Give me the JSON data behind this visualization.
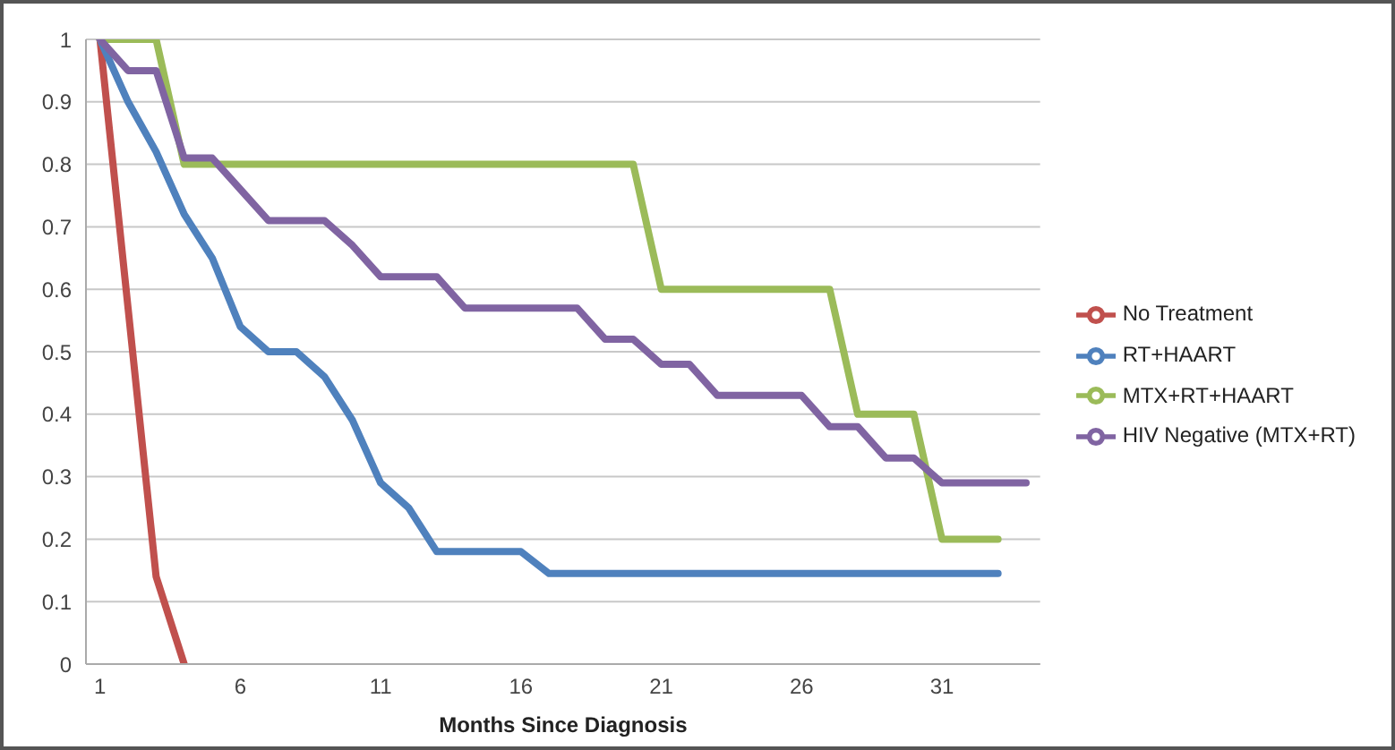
{
  "chart_data": {
    "type": "line",
    "xlabel": "Months Since Diagnosis",
    "x": [
      1,
      2,
      3,
      4,
      5,
      6,
      7,
      8,
      9,
      10,
      11,
      12,
      13,
      14,
      15,
      16,
      17,
      18,
      19,
      20,
      21,
      22,
      23,
      24,
      25,
      26,
      27,
      28,
      29,
      30,
      31,
      32,
      33,
      34
    ],
    "series": [
      {
        "name": "No Treatment",
        "color": "#c0504d",
        "values": [
          1,
          0.57,
          0.14,
          0,
          null,
          null,
          null,
          null,
          null,
          null,
          null,
          null,
          null,
          null,
          null,
          null,
          null,
          null,
          null,
          null,
          null,
          null,
          null,
          null,
          null,
          null,
          null,
          null,
          null,
          null,
          null,
          null,
          null,
          null
        ]
      },
      {
        "name": "RT+HAART",
        "color": "#4f81bd",
        "values": [
          1,
          0.9,
          0.82,
          0.72,
          0.65,
          0.54,
          0.5,
          0.5,
          0.46,
          0.39,
          0.29,
          0.25,
          0.18,
          0.18,
          0.18,
          0.18,
          0.145,
          0.145,
          0.145,
          0.145,
          0.145,
          0.145,
          0.145,
          0.145,
          0.145,
          0.145,
          0.145,
          0.145,
          0.145,
          0.145,
          0.145,
          0.145,
          0.145,
          null
        ]
      },
      {
        "name": "MTX+RT+HAART",
        "color": "#9bbb59",
        "values": [
          1,
          1,
          1,
          0.8,
          0.8,
          0.8,
          0.8,
          0.8,
          0.8,
          0.8,
          0.8,
          0.8,
          0.8,
          0.8,
          0.8,
          0.8,
          0.8,
          0.8,
          0.8,
          0.8,
          0.6,
          0.6,
          0.6,
          0.6,
          0.6,
          0.6,
          0.6,
          0.4,
          0.4,
          0.4,
          0.2,
          0.2,
          0.2,
          null
        ]
      },
      {
        "name": "HIV Negative (MTX+RT)",
        "color": "#8064a2",
        "values": [
          1,
          0.95,
          0.95,
          0.81,
          0.81,
          0.76,
          0.71,
          0.71,
          0.71,
          0.67,
          0.62,
          0.62,
          0.62,
          0.57,
          0.57,
          0.57,
          0.57,
          0.57,
          0.52,
          0.52,
          0.48,
          0.48,
          0.43,
          0.43,
          0.43,
          0.43,
          0.38,
          0.38,
          0.33,
          0.33,
          0.29,
          0.29,
          0.29,
          0.29
        ]
      }
    ],
    "xlim": [
      0.5,
      34.5
    ],
    "xticks": [
      1,
      6,
      11,
      16,
      21,
      26,
      31
    ],
    "ylim": [
      0,
      1
    ],
    "yticks": [
      0,
      0.1,
      0.2,
      0.3,
      0.4,
      0.5,
      0.6,
      0.7,
      0.8,
      0.9,
      1
    ],
    "grid": "y",
    "legend": "right",
    "marker": "none",
    "line_style": "solid"
  }
}
